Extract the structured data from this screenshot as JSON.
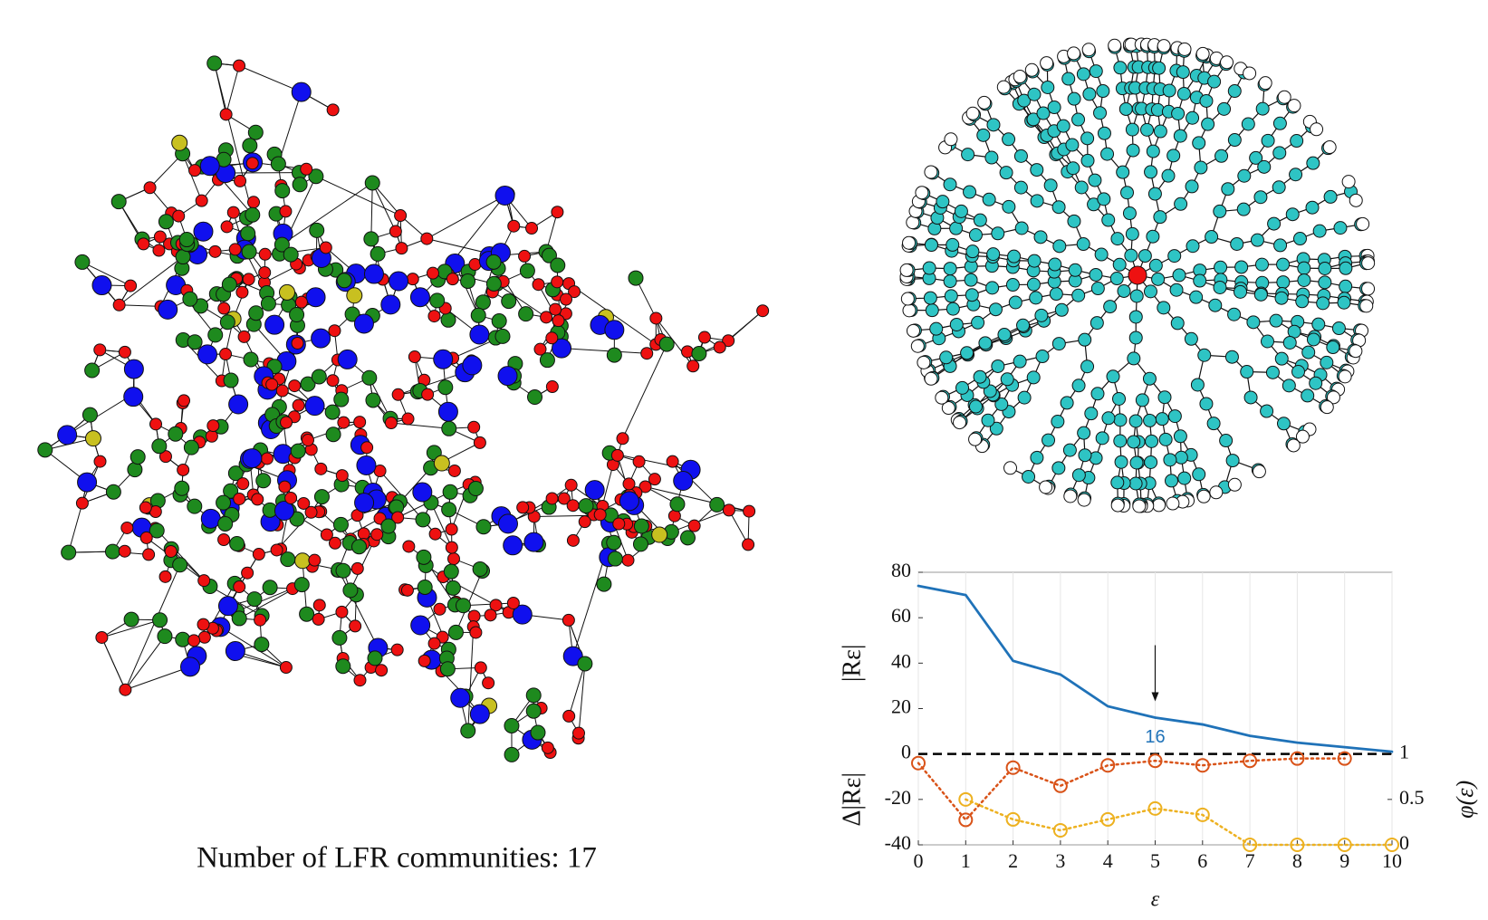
{
  "caption": "Number of LFR communities: 17",
  "chart_data": {
    "type": "line",
    "xlabel": "ε",
    "ylabel_upper": "|Rε|",
    "ylabel_lower": "Δ|Rε|",
    "y2label": "φ(ε)",
    "xlim": [
      0,
      10
    ],
    "xticks": [
      0,
      1,
      2,
      3,
      4,
      5,
      6,
      7,
      8,
      9,
      10
    ],
    "ylim": [
      -40,
      80
    ],
    "yticks": [
      -40,
      -20,
      0,
      20,
      40,
      60,
      80
    ],
    "y2lim": [
      0,
      3
    ],
    "y2ticks": [
      0,
      0.5,
      1
    ],
    "grid": "x",
    "reference_line": 0,
    "series": [
      {
        "name": "|Rε|",
        "color": "#1f72b8",
        "style": "solid",
        "marker": "none",
        "x": [
          0,
          1,
          2,
          3,
          4,
          5,
          6,
          7,
          8,
          9,
          10
        ],
        "values": [
          74,
          70,
          41,
          35,
          21,
          16,
          13,
          8,
          5,
          3,
          1
        ]
      },
      {
        "name": "Δ|Rε|",
        "color": "#d95319",
        "style": "dotted",
        "marker": "o",
        "x": [
          0,
          1,
          2,
          3,
          4,
          5,
          6,
          7,
          8,
          9
        ],
        "values": [
          -4,
          -29,
          -6,
          -14,
          -5,
          -3,
          -5,
          -3,
          -2,
          -2
        ]
      },
      {
        "name": "φ(ε)",
        "color": "#edb120",
        "style": "dotted",
        "marker": "o",
        "axis": "y2",
        "x": [
          1,
          2,
          3,
          4,
          5,
          6,
          7,
          8,
          9,
          10
        ],
        "values": [
          0.5,
          0.28,
          0.16,
          0.28,
          0.4,
          0.33,
          0,
          0,
          0,
          0
        ]
      }
    ],
    "annotation": {
      "text": "16",
      "x": 5,
      "y": 16
    }
  }
}
